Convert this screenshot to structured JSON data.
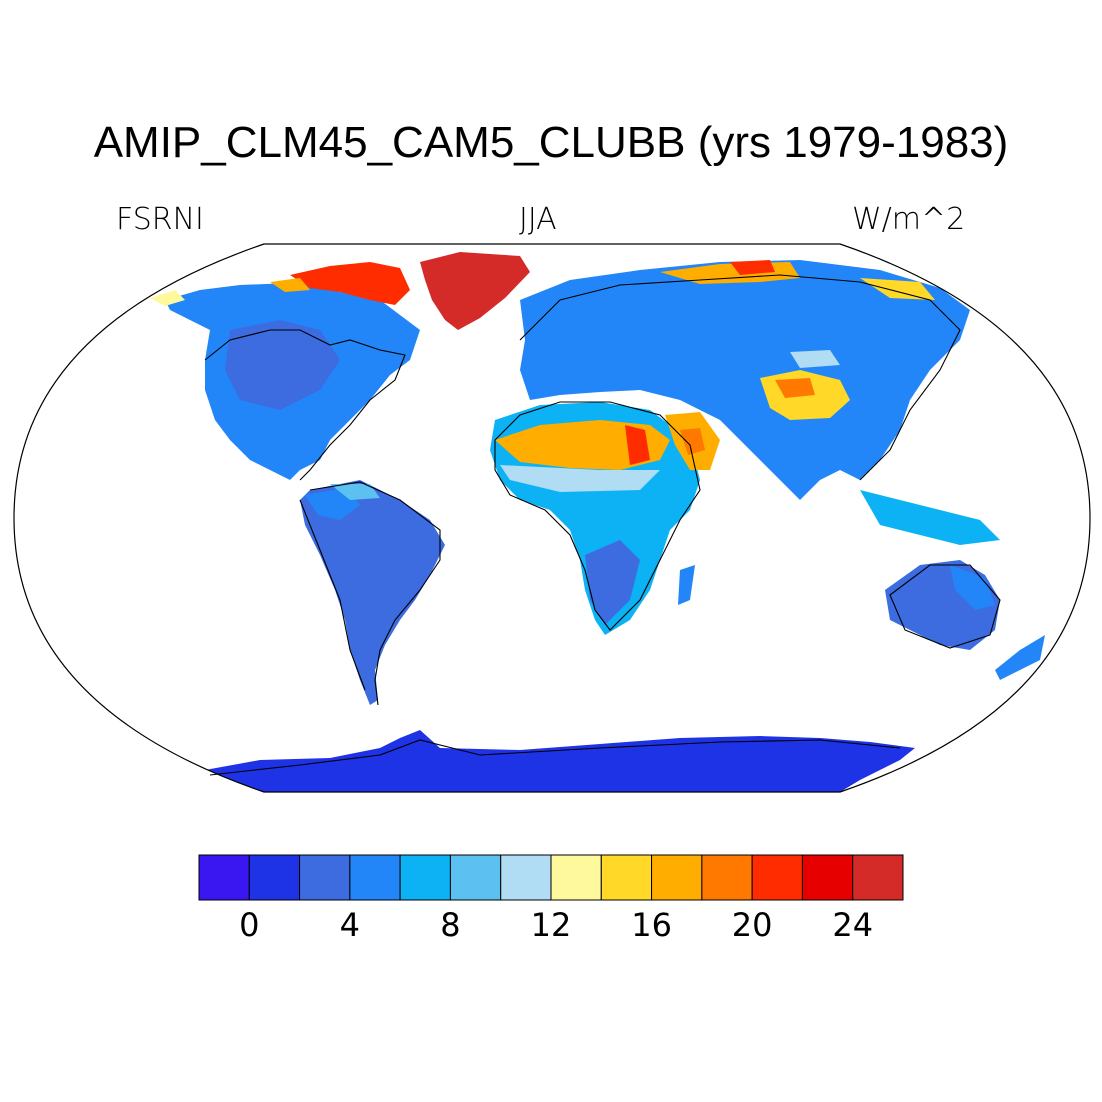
{
  "title": "AMIP_CLM45_CAM5_CLUBB (yrs 1979-1983)",
  "left_label": "FSRNI",
  "center_label": "JJA",
  "right_label": "W/m^2",
  "colorbar": {
    "colors": [
      "#3a16f0",
      "#1e32e6",
      "#3c6ce0",
      "#2286f8",
      "#0cb2f4",
      "#5cc0f0",
      "#b0dcf4",
      "#fff99e",
      "#ffd828",
      "#ffae00",
      "#ff7800",
      "#ff2c00",
      "#e60000",
      "#d42a28"
    ],
    "tick_labels": [
      "0",
      "4",
      "8",
      "12",
      "16",
      "20",
      "24"
    ]
  },
  "chart_data": {
    "type": "heatmap",
    "projection": "Robinson",
    "variable": "FSRNI",
    "season": "JJA",
    "units": "W/m^2",
    "levels": [
      0,
      2,
      4,
      6,
      8,
      10,
      12,
      14,
      16,
      18,
      20,
      22,
      24
    ],
    "ocean_masked": true,
    "regions": [
      {
        "region": "Antarctica",
        "value": 0
      },
      {
        "region": "South America",
        "value": 3
      },
      {
        "region": "Southern Africa",
        "value": 3
      },
      {
        "region": "Australia",
        "value": 4
      },
      {
        "region": "North America",
        "value": 5
      },
      {
        "region": "Europe",
        "value": 6
      },
      {
        "region": "Siberia",
        "value": 6
      },
      {
        "region": "Southeast Asia",
        "value": 7
      },
      {
        "region": "Sahel",
        "value": 10
      },
      {
        "region": "Tibetan Plateau",
        "value": 14
      },
      {
        "region": "Sahara",
        "value": 17
      },
      {
        "region": "Arabian Peninsula",
        "value": 18
      },
      {
        "region": "Arctic Canada",
        "value": 21
      },
      {
        "region": "Greenland",
        "value": 24
      }
    ]
  }
}
